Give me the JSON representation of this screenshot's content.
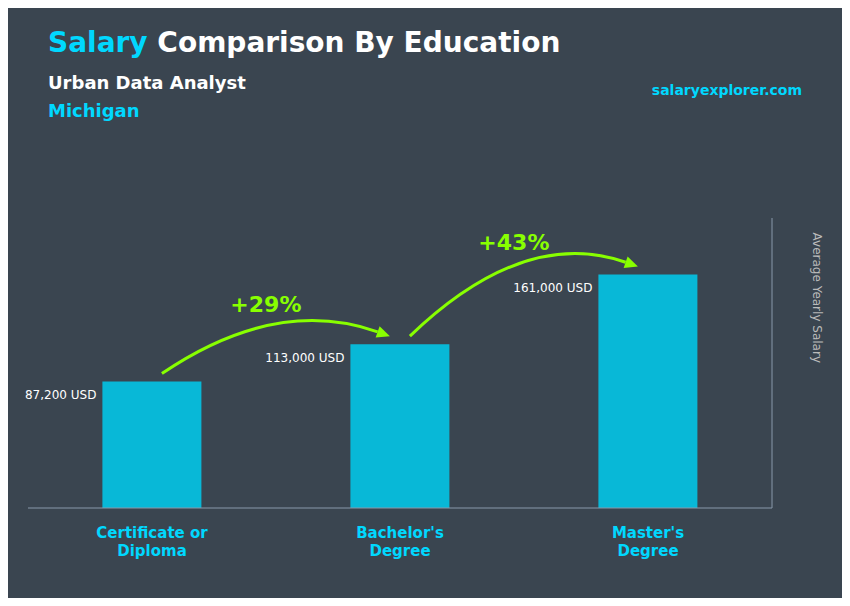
{
  "chart_data": {
    "type": "bar",
    "title": "Salary Comparison By Education",
    "subtitle": "Urban Data Analyst",
    "annotations": [
      "Michigan",
      "salaryexplorer.com"
    ],
    "change_labels": [
      "+29%",
      "+43%"
    ],
    "y_label": "Average Yearly Salary",
    "categories": [
      "Certificate or\nDiploma",
      "Bachelor's\nDegree",
      "Master's\nDegree"
    ],
    "values": [
      87200,
      113000,
      161000
    ],
    "value_labels": [
      "87,200 USD",
      "113,000 USD",
      "161,000 USD"
    ],
    "data_labels": true,
    "color": "#00ccee",
    "ylim": [
      0,
      200000
    ],
    "tick_labels": "x",
    "grid": false
  }
}
